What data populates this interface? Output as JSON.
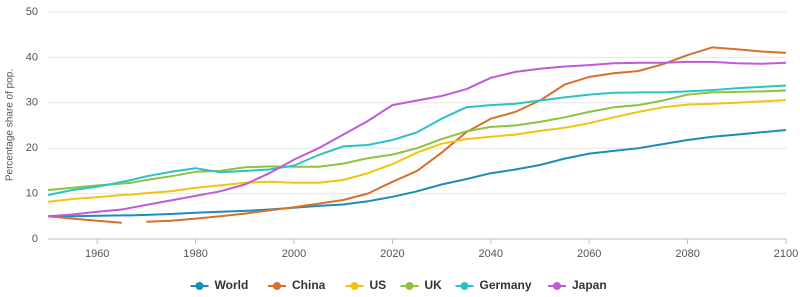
{
  "chart_data": {
    "type": "line",
    "y_label": "Percentage share of pop.",
    "x": [
      1950,
      1955,
      1960,
      1965,
      1967,
      1970,
      1975,
      1980,
      1985,
      1990,
      1995,
      2000,
      2005,
      2010,
      2015,
      2020,
      2025,
      2030,
      2035,
      2040,
      2045,
      2050,
      2055,
      2060,
      2065,
      2070,
      2075,
      2080,
      2085,
      2090,
      2095,
      2100
    ],
    "xlim": [
      1950,
      2100
    ],
    "xticks": [
      1960,
      1980,
      2000,
      2020,
      2040,
      2060,
      2080,
      2100
    ],
    "ylim": [
      0,
      50
    ],
    "yticks": [
      0,
      10,
      20,
      30,
      40,
      50
    ],
    "grid": true,
    "legend": "bottom",
    "series": [
      {
        "name": "World",
        "color": "#1a8cbd",
        "values": [
          5.0,
          5.0,
          5.1,
          5.2,
          5.2,
          5.3,
          5.5,
          5.8,
          6.0,
          6.2,
          6.5,
          6.9,
          7.3,
          7.6,
          8.3,
          9.3,
          10.5,
          12.0,
          13.2,
          14.5,
          15.3,
          16.3,
          17.7,
          18.8,
          19.4,
          20.0,
          20.9,
          21.8,
          22.5,
          23.0,
          23.5,
          24.0
        ]
      },
      {
        "name": "China",
        "color": "#d9702a",
        "values": [
          5.0,
          4.5,
          4.0,
          3.6,
          null,
          3.8,
          4.0,
          4.5,
          5.0,
          5.6,
          6.3,
          7.0,
          7.8,
          8.6,
          10.0,
          12.6,
          15.0,
          19.0,
          23.5,
          26.5,
          28.0,
          30.5,
          34.0,
          35.7,
          36.5,
          37.0,
          38.5,
          40.5,
          42.2,
          41.8,
          41.3,
          41.0
        ]
      },
      {
        "name": "US",
        "color": "#f2c40f",
        "values": [
          8.2,
          8.8,
          9.2,
          9.7,
          9.8,
          10.1,
          10.5,
          11.3,
          11.8,
          12.4,
          12.6,
          12.4,
          12.4,
          13.0,
          14.5,
          16.5,
          19.0,
          21.0,
          22.0,
          22.5,
          23.0,
          23.8,
          24.5,
          25.5,
          26.8,
          28.0,
          29.0,
          29.6,
          29.8,
          30.0,
          30.3,
          30.6
        ]
      },
      {
        "name": "UK",
        "color": "#8dc33f",
        "values": [
          10.8,
          11.3,
          11.8,
          12.2,
          12.4,
          13.0,
          13.8,
          14.8,
          15.0,
          15.8,
          16.0,
          15.9,
          15.9,
          16.6,
          17.8,
          18.6,
          20.0,
          22.0,
          23.7,
          24.7,
          25.0,
          25.8,
          26.8,
          28.0,
          29.0,
          29.5,
          30.5,
          31.8,
          32.3,
          32.4,
          32.5,
          32.7
        ]
      },
      {
        "name": "Germany",
        "color": "#2bc2c8",
        "values": [
          9.7,
          10.8,
          11.5,
          12.6,
          13.0,
          13.8,
          14.8,
          15.6,
          14.7,
          15.0,
          15.3,
          16.2,
          18.5,
          20.4,
          20.7,
          21.8,
          23.5,
          26.5,
          29.0,
          29.5,
          29.8,
          30.5,
          31.2,
          31.8,
          32.2,
          32.3,
          32.3,
          32.5,
          32.8,
          33.2,
          33.5,
          33.8
        ]
      },
      {
        "name": "Japan",
        "color": "#bf5bd8",
        "values": [
          5.0,
          5.4,
          6.0,
          6.5,
          6.9,
          7.5,
          8.5,
          9.5,
          10.5,
          12.0,
          14.5,
          17.5,
          20.0,
          23.0,
          26.0,
          29.5,
          30.5,
          31.5,
          33.0,
          35.5,
          36.8,
          37.5,
          38.0,
          38.3,
          38.7,
          38.8,
          38.8,
          39.0,
          39.0,
          38.7,
          38.6,
          38.8
        ]
      }
    ]
  }
}
